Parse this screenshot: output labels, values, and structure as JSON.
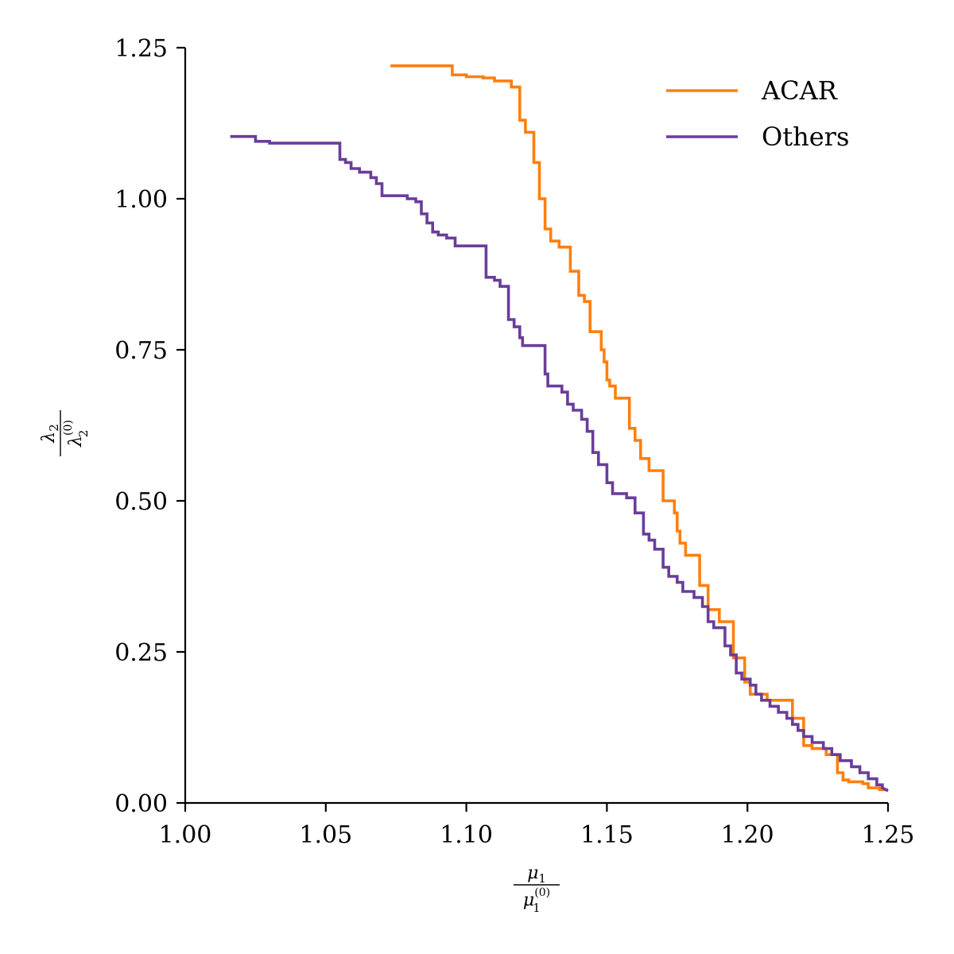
{
  "chart_data": {
    "type": "line",
    "step": true,
    "title": "",
    "xlabel": {
      "numerator": "μ",
      "numerator_sub": "1",
      "denominator": "μ",
      "denominator_sub": "1",
      "denominator_sup": "(0)"
    },
    "ylabel": {
      "numerator": "λ",
      "numerator_sub": "2",
      "denominator": "λ",
      "denominator_sub": "2",
      "denominator_sup": "(0)"
    },
    "xlim": [
      1.0,
      1.25
    ],
    "ylim": [
      0.0,
      1.25
    ],
    "x_ticks": [
      "1.00",
      "1.05",
      "1.10",
      "1.15",
      "1.20",
      "1.25"
    ],
    "y_ticks": [
      "0.00",
      "0.25",
      "0.50",
      "0.75",
      "1.00",
      "1.25"
    ],
    "grid": false,
    "legend_position": "top-right",
    "series": [
      {
        "name": "ACAR",
        "color": "#ff7f0e",
        "points": [
          [
            1.073,
            1.22
          ],
          [
            1.095,
            1.22
          ],
          [
            1.095,
            1.205
          ],
          [
            1.1,
            1.205
          ],
          [
            1.1,
            1.202
          ],
          [
            1.106,
            1.202
          ],
          [
            1.106,
            1.2
          ],
          [
            1.11,
            1.2
          ],
          [
            1.11,
            1.195
          ],
          [
            1.116,
            1.195
          ],
          [
            1.116,
            1.185
          ],
          [
            1.119,
            1.185
          ],
          [
            1.119,
            1.13
          ],
          [
            1.121,
            1.13
          ],
          [
            1.121,
            1.11
          ],
          [
            1.124,
            1.11
          ],
          [
            1.124,
            1.06
          ],
          [
            1.126,
            1.06
          ],
          [
            1.126,
            1.0
          ],
          [
            1.128,
            1.0
          ],
          [
            1.128,
            0.95
          ],
          [
            1.13,
            0.95
          ],
          [
            1.13,
            0.93
          ],
          [
            1.133,
            0.93
          ],
          [
            1.133,
            0.92
          ],
          [
            1.137,
            0.92
          ],
          [
            1.137,
            0.88
          ],
          [
            1.14,
            0.88
          ],
          [
            1.14,
            0.84
          ],
          [
            1.142,
            0.84
          ],
          [
            1.142,
            0.83
          ],
          [
            1.144,
            0.83
          ],
          [
            1.144,
            0.78
          ],
          [
            1.148,
            0.78
          ],
          [
            1.148,
            0.75
          ],
          [
            1.149,
            0.75
          ],
          [
            1.149,
            0.73
          ],
          [
            1.15,
            0.73
          ],
          [
            1.15,
            0.7
          ],
          [
            1.151,
            0.7
          ],
          [
            1.151,
            0.69
          ],
          [
            1.153,
            0.69
          ],
          [
            1.153,
            0.67
          ],
          [
            1.158,
            0.67
          ],
          [
            1.158,
            0.62
          ],
          [
            1.16,
            0.62
          ],
          [
            1.16,
            0.6
          ],
          [
            1.162,
            0.6
          ],
          [
            1.162,
            0.57
          ],
          [
            1.165,
            0.57
          ],
          [
            1.165,
            0.55
          ],
          [
            1.17,
            0.55
          ],
          [
            1.17,
            0.5
          ],
          [
            1.174,
            0.5
          ],
          [
            1.174,
            0.48
          ],
          [
            1.175,
            0.48
          ],
          [
            1.175,
            0.45
          ],
          [
            1.176,
            0.45
          ],
          [
            1.176,
            0.43
          ],
          [
            1.178,
            0.43
          ],
          [
            1.178,
            0.41
          ],
          [
            1.183,
            0.41
          ],
          [
            1.183,
            0.36
          ],
          [
            1.186,
            0.36
          ],
          [
            1.186,
            0.32
          ],
          [
            1.19,
            0.32
          ],
          [
            1.19,
            0.3
          ],
          [
            1.195,
            0.3
          ],
          [
            1.195,
            0.24
          ],
          [
            1.199,
            0.24
          ],
          [
            1.199,
            0.2
          ],
          [
            1.201,
            0.2
          ],
          [
            1.201,
            0.18
          ],
          [
            1.207,
            0.18
          ],
          [
            1.207,
            0.17
          ],
          [
            1.216,
            0.17
          ],
          [
            1.216,
            0.14
          ],
          [
            1.22,
            0.14
          ],
          [
            1.22,
            0.095
          ],
          [
            1.223,
            0.095
          ],
          [
            1.223,
            0.09
          ],
          [
            1.228,
            0.09
          ],
          [
            1.228,
            0.08
          ],
          [
            1.232,
            0.08
          ],
          [
            1.232,
            0.05
          ],
          [
            1.234,
            0.05
          ],
          [
            1.234,
            0.038
          ],
          [
            1.236,
            0.038
          ],
          [
            1.236,
            0.035
          ],
          [
            1.241,
            0.035
          ],
          [
            1.241,
            0.032
          ],
          [
            1.243,
            0.032
          ],
          [
            1.243,
            0.025
          ],
          [
            1.247,
            0.025
          ],
          [
            1.247,
            0.022
          ],
          [
            1.25,
            0.022
          ]
        ]
      },
      {
        "name": "Others",
        "color": "#6a3d9a",
        "points": [
          [
            1.016,
            1.103
          ],
          [
            1.025,
            1.103
          ],
          [
            1.025,
            1.095
          ],
          [
            1.03,
            1.095
          ],
          [
            1.03,
            1.092
          ],
          [
            1.055,
            1.092
          ],
          [
            1.055,
            1.065
          ],
          [
            1.057,
            1.065
          ],
          [
            1.057,
            1.06
          ],
          [
            1.059,
            1.06
          ],
          [
            1.059,
            1.05
          ],
          [
            1.062,
            1.05
          ],
          [
            1.062,
            1.044
          ],
          [
            1.066,
            1.044
          ],
          [
            1.066,
            1.035
          ],
          [
            1.068,
            1.035
          ],
          [
            1.068,
            1.025
          ],
          [
            1.07,
            1.025
          ],
          [
            1.07,
            1.005
          ],
          [
            1.079,
            1.005
          ],
          [
            1.079,
            1.0
          ],
          [
            1.082,
            1.0
          ],
          [
            1.082,
            0.995
          ],
          [
            1.084,
            0.995
          ],
          [
            1.084,
            0.975
          ],
          [
            1.086,
            0.975
          ],
          [
            1.086,
            0.96
          ],
          [
            1.088,
            0.96
          ],
          [
            1.088,
            0.945
          ],
          [
            1.09,
            0.945
          ],
          [
            1.09,
            0.94
          ],
          [
            1.093,
            0.94
          ],
          [
            1.093,
            0.935
          ],
          [
            1.096,
            0.935
          ],
          [
            1.096,
            0.922
          ],
          [
            1.107,
            0.922
          ],
          [
            1.107,
            0.87
          ],
          [
            1.11,
            0.87
          ],
          [
            1.11,
            0.865
          ],
          [
            1.112,
            0.865
          ],
          [
            1.112,
            0.855
          ],
          [
            1.115,
            0.855
          ],
          [
            1.115,
            0.8
          ],
          [
            1.117,
            0.8
          ],
          [
            1.117,
            0.788
          ],
          [
            1.119,
            0.788
          ],
          [
            1.119,
            0.77
          ],
          [
            1.12,
            0.77
          ],
          [
            1.12,
            0.757
          ],
          [
            1.128,
            0.757
          ],
          [
            1.128,
            0.71
          ],
          [
            1.129,
            0.71
          ],
          [
            1.129,
            0.69
          ],
          [
            1.134,
            0.69
          ],
          [
            1.134,
            0.68
          ],
          [
            1.136,
            0.68
          ],
          [
            1.136,
            0.66
          ],
          [
            1.138,
            0.66
          ],
          [
            1.138,
            0.65
          ],
          [
            1.141,
            0.65
          ],
          [
            1.141,
            0.635
          ],
          [
            1.143,
            0.635
          ],
          [
            1.143,
            0.615
          ],
          [
            1.145,
            0.615
          ],
          [
            1.145,
            0.58
          ],
          [
            1.147,
            0.58
          ],
          [
            1.147,
            0.56
          ],
          [
            1.15,
            0.56
          ],
          [
            1.15,
            0.53
          ],
          [
            1.152,
            0.53
          ],
          [
            1.152,
            0.512
          ],
          [
            1.157,
            0.512
          ],
          [
            1.157,
            0.505
          ],
          [
            1.16,
            0.505
          ],
          [
            1.16,
            0.48
          ],
          [
            1.163,
            0.48
          ],
          [
            1.163,
            0.445
          ],
          [
            1.165,
            0.445
          ],
          [
            1.165,
            0.435
          ],
          [
            1.167,
            0.435
          ],
          [
            1.167,
            0.42
          ],
          [
            1.17,
            0.42
          ],
          [
            1.17,
            0.39
          ],
          [
            1.172,
            0.39
          ],
          [
            1.172,
            0.375
          ],
          [
            1.175,
            0.375
          ],
          [
            1.175,
            0.365
          ],
          [
            1.177,
            0.365
          ],
          [
            1.177,
            0.35
          ],
          [
            1.181,
            0.35
          ],
          [
            1.181,
            0.34
          ],
          [
            1.184,
            0.34
          ],
          [
            1.184,
            0.325
          ],
          [
            1.186,
            0.325
          ],
          [
            1.186,
            0.3
          ],
          [
            1.188,
            0.3
          ],
          [
            1.188,
            0.29
          ],
          [
            1.192,
            0.29
          ],
          [
            1.192,
            0.26
          ],
          [
            1.194,
            0.26
          ],
          [
            1.194,
            0.245
          ],
          [
            1.196,
            0.245
          ],
          [
            1.196,
            0.215
          ],
          [
            1.198,
            0.215
          ],
          [
            1.198,
            0.205
          ],
          [
            1.201,
            0.205
          ],
          [
            1.201,
            0.195
          ],
          [
            1.203,
            0.195
          ],
          [
            1.203,
            0.18
          ],
          [
            1.205,
            0.18
          ],
          [
            1.205,
            0.17
          ],
          [
            1.208,
            0.17
          ],
          [
            1.208,
            0.16
          ],
          [
            1.211,
            0.16
          ],
          [
            1.211,
            0.15
          ],
          [
            1.214,
            0.15
          ],
          [
            1.214,
            0.14
          ],
          [
            1.216,
            0.14
          ],
          [
            1.216,
            0.13
          ],
          [
            1.218,
            0.13
          ],
          [
            1.218,
            0.12
          ],
          [
            1.22,
            0.12
          ],
          [
            1.22,
            0.11
          ],
          [
            1.223,
            0.11
          ],
          [
            1.223,
            0.1
          ],
          [
            1.227,
            0.1
          ],
          [
            1.227,
            0.09
          ],
          [
            1.23,
            0.09
          ],
          [
            1.23,
            0.08
          ],
          [
            1.233,
            0.08
          ],
          [
            1.233,
            0.07
          ],
          [
            1.237,
            0.07
          ],
          [
            1.237,
            0.06
          ],
          [
            1.24,
            0.06
          ],
          [
            1.24,
            0.05
          ],
          [
            1.243,
            0.05
          ],
          [
            1.243,
            0.04
          ],
          [
            1.246,
            0.04
          ],
          [
            1.246,
            0.03
          ],
          [
            1.248,
            0.03
          ],
          [
            1.248,
            0.025
          ],
          [
            1.25,
            0.02
          ]
        ]
      }
    ]
  }
}
